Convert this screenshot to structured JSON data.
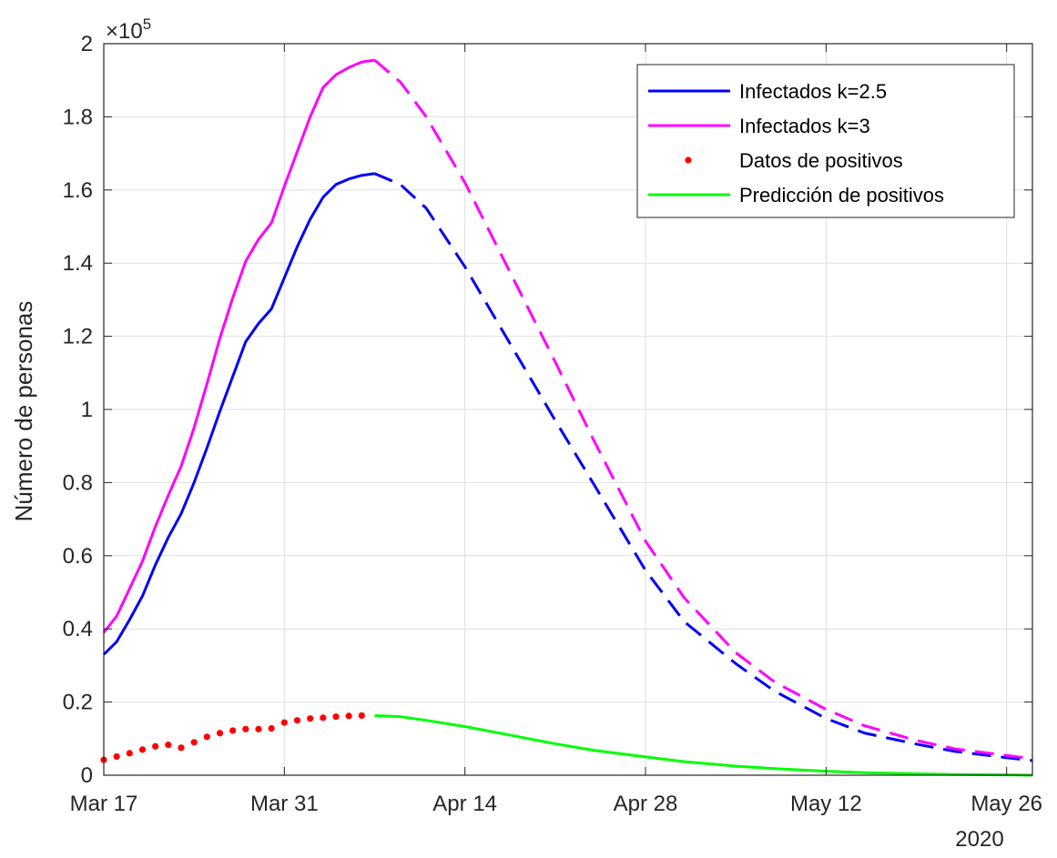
{
  "chart_data": {
    "type": "line",
    "title": "",
    "xlabel": "",
    "ylabel": "Número de personas",
    "y_exponent_label": "×10",
    "y_exponent_power": "5",
    "x_year_label": "2020",
    "xlim": [
      "2020-03-17",
      "2020-05-28"
    ],
    "ylim": [
      0,
      200000
    ],
    "grid": true,
    "legend_position": "top-right",
    "xticks": [
      {
        "date": "2020-03-17",
        "label": "Mar 17"
      },
      {
        "date": "2020-03-31",
        "label": "Mar 31"
      },
      {
        "date": "2020-04-14",
        "label": "Apr 14"
      },
      {
        "date": "2020-04-28",
        "label": "Apr 28"
      },
      {
        "date": "2020-05-12",
        "label": "May 12"
      },
      {
        "date": "2020-05-26",
        "label": "May 26"
      }
    ],
    "yticks": [
      {
        "value": 0,
        "label": "0"
      },
      {
        "value": 20000,
        "label": "0.2"
      },
      {
        "value": 40000,
        "label": "0.4"
      },
      {
        "value": 60000,
        "label": "0.6"
      },
      {
        "value": 80000,
        "label": "0.8"
      },
      {
        "value": 100000,
        "label": "1"
      },
      {
        "value": 120000,
        "label": "1.2"
      },
      {
        "value": 140000,
        "label": "1.4"
      },
      {
        "value": 160000,
        "label": "1.6"
      },
      {
        "value": 180000,
        "label": "1.8"
      },
      {
        "value": 200000,
        "label": "2"
      }
    ],
    "series": [
      {
        "name": "Infectados k=2.5",
        "color": "#0000ff",
        "style": "line",
        "observed": {
          "x": [
            "2020-03-17",
            "2020-03-18",
            "2020-03-19",
            "2020-03-20",
            "2020-03-21",
            "2020-03-22",
            "2020-03-23",
            "2020-03-24",
            "2020-03-25",
            "2020-03-26",
            "2020-03-27",
            "2020-03-28",
            "2020-03-29",
            "2020-03-30",
            "2020-03-31",
            "2020-04-01",
            "2020-04-02",
            "2020-04-03",
            "2020-04-04",
            "2020-04-05",
            "2020-04-06",
            "2020-04-07"
          ],
          "y": [
            33000,
            36500,
            42500,
            49000,
            57500,
            65000,
            71500,
            80000,
            89500,
            99500,
            109000,
            118500,
            123500,
            127500,
            136000,
            144500,
            152000,
            158000,
            161500,
            163000,
            164000,
            164500
          ]
        },
        "forecast": {
          "x": [
            "2020-04-07",
            "2020-04-09",
            "2020-04-11",
            "2020-04-14",
            "2020-04-17",
            "2020-04-21",
            "2020-04-24",
            "2020-04-28",
            "2020-05-01",
            "2020-05-05",
            "2020-05-08",
            "2020-05-12",
            "2020-05-15",
            "2020-05-19",
            "2020-05-22",
            "2020-05-26",
            "2020-05-28"
          ],
          "y": [
            164500,
            161500,
            155000,
            139000,
            121000,
            97000,
            79500,
            56000,
            42000,
            30500,
            23000,
            15500,
            11500,
            8500,
            6500,
            4800,
            4000
          ]
        }
      },
      {
        "name": "Infectados k=3",
        "color": "#ff00ff",
        "style": "line",
        "observed": {
          "x": [
            "2020-03-17",
            "2020-03-18",
            "2020-03-19",
            "2020-03-20",
            "2020-03-21",
            "2020-03-22",
            "2020-03-23",
            "2020-03-24",
            "2020-03-25",
            "2020-03-26",
            "2020-03-27",
            "2020-03-28",
            "2020-03-29",
            "2020-03-30",
            "2020-03-31",
            "2020-04-01",
            "2020-04-02",
            "2020-04-03",
            "2020-04-04",
            "2020-04-05",
            "2020-04-06",
            "2020-04-07"
          ],
          "y": [
            39000,
            43500,
            51000,
            58500,
            68000,
            76500,
            84500,
            95000,
            107000,
            119500,
            130500,
            140500,
            146500,
            151000,
            161000,
            170500,
            180000,
            188000,
            191500,
            193500,
            195000,
            195500
          ]
        },
        "forecast": {
          "x": [
            "2020-04-07",
            "2020-04-09",
            "2020-04-11",
            "2020-04-14",
            "2020-04-17",
            "2020-04-21",
            "2020-04-24",
            "2020-04-28",
            "2020-05-01",
            "2020-05-05",
            "2020-05-08",
            "2020-05-12",
            "2020-05-15",
            "2020-05-19",
            "2020-05-22",
            "2020-05-26",
            "2020-05-28"
          ],
          "y": [
            195500,
            189500,
            180000,
            162000,
            141000,
            113000,
            91500,
            64000,
            48500,
            33500,
            25500,
            18000,
            13500,
            9500,
            7200,
            5400,
            4500
          ]
        }
      },
      {
        "name": "Datos de positivos",
        "color": "#ff0000",
        "style": "dots",
        "x": [
          "2020-03-17",
          "2020-03-18",
          "2020-03-19",
          "2020-03-20",
          "2020-03-21",
          "2020-03-22",
          "2020-03-23",
          "2020-03-24",
          "2020-03-25",
          "2020-03-26",
          "2020-03-27",
          "2020-03-28",
          "2020-03-29",
          "2020-03-30",
          "2020-03-31",
          "2020-04-01",
          "2020-04-02",
          "2020-04-03",
          "2020-04-04",
          "2020-04-05",
          "2020-04-06"
        ],
        "y": [
          4200,
          5100,
          6000,
          7000,
          7900,
          8300,
          7500,
          9000,
          10500,
          11500,
          12200,
          12600,
          12600,
          12800,
          14400,
          15000,
          15500,
          15700,
          16000,
          16200,
          16300
        ]
      },
      {
        "name": "Predicción de positivos",
        "color": "#00ff00",
        "style": "line",
        "x": [
          "2020-04-07",
          "2020-04-09",
          "2020-04-11",
          "2020-04-14",
          "2020-04-17",
          "2020-04-21",
          "2020-04-24",
          "2020-04-28",
          "2020-05-01",
          "2020-05-05",
          "2020-05-08",
          "2020-05-12",
          "2020-05-15",
          "2020-05-19",
          "2020-05-22",
          "2020-05-26",
          "2020-05-28"
        ],
        "y": [
          16300,
          16000,
          15000,
          13300,
          11300,
          8600,
          6800,
          5000,
          3700,
          2500,
          1800,
          1100,
          700,
          400,
          200,
          100,
          0
        ]
      }
    ]
  }
}
